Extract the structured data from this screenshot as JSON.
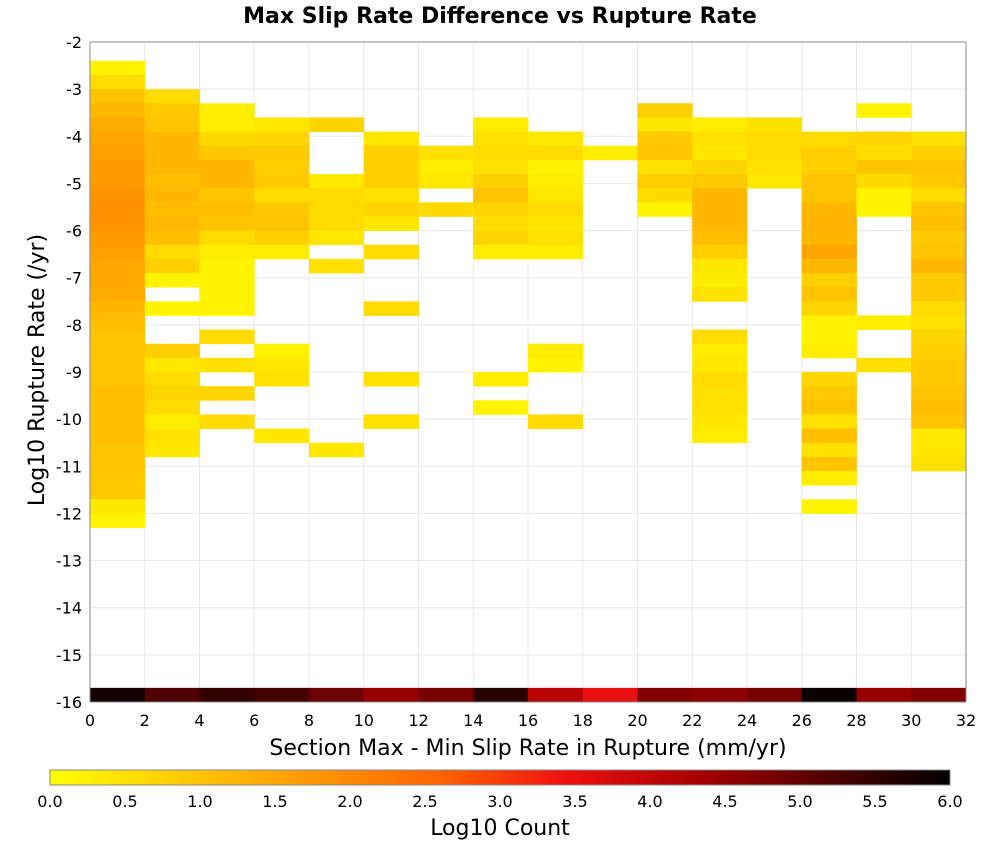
{
  "chart_data": {
    "type": "heatmap",
    "title": "Max Slip Rate Difference vs Rupture Rate",
    "xlabel": "Section Max - Min Slip Rate in Rupture (mm/yr)",
    "ylabel": "Log10 Rupture Rate (/yr)",
    "xlim": [
      0,
      32
    ],
    "ylim": [
      -16,
      -2
    ],
    "x_ticks": [
      "0",
      "2",
      "4",
      "6",
      "8",
      "10",
      "12",
      "14",
      "16",
      "18",
      "20",
      "22",
      "24",
      "26",
      "28",
      "30",
      "32"
    ],
    "y_ticks": [
      "-2",
      "-3",
      "-4",
      "-5",
      "-6",
      "-7",
      "-8",
      "-9",
      "-10",
      "-11",
      "-12",
      "-13",
      "-14",
      "-15",
      "-16"
    ],
    "grid": true,
    "x_bin_width": 2,
    "y_bin_height": 0.3,
    "colorbar": {
      "label": "Log10 Count",
      "range": [
        0,
        6
      ],
      "ticks": [
        "0.0",
        "0.5",
        "1.0",
        "1.5",
        "2.0",
        "2.5",
        "3.0",
        "3.5",
        "4.0",
        "4.5",
        "5.0",
        "5.5",
        "6.0"
      ],
      "stops": [
        "#ffff00",
        "#ffcc00",
        "#ff9900",
        "#ff6600",
        "#ee1111",
        "#aa0000",
        "#550000",
        "#000000"
      ]
    },
    "columns": [
      {
        "x0": 0,
        "cells": [
          [
            -2.7,
            0.2
          ],
          [
            -3.0,
            0.6
          ],
          [
            -3.3,
            1.0
          ],
          [
            -3.6,
            1.2
          ],
          [
            -3.9,
            1.4
          ],
          [
            -4.2,
            1.5
          ],
          [
            -4.5,
            1.6
          ],
          [
            -4.8,
            1.7
          ],
          [
            -5.1,
            1.7
          ],
          [
            -5.4,
            1.8
          ],
          [
            -5.7,
            1.9
          ],
          [
            -6.0,
            1.8
          ],
          [
            -6.3,
            1.7
          ],
          [
            -6.6,
            1.6
          ],
          [
            -6.9,
            1.5
          ],
          [
            -7.2,
            1.5
          ],
          [
            -7.5,
            1.4
          ],
          [
            -7.8,
            1.2
          ],
          [
            -8.1,
            1.1
          ],
          [
            -8.4,
            1.0
          ],
          [
            -8.7,
            1.0
          ],
          [
            -9.0,
            1.0
          ],
          [
            -9.3,
            1.0
          ],
          [
            -9.6,
            1.1
          ],
          [
            -9.9,
            1.1
          ],
          [
            -10.2,
            1.1
          ],
          [
            -10.5,
            1.1
          ],
          [
            -10.8,
            1.0
          ],
          [
            -11.1,
            1.0
          ],
          [
            -11.4,
            0.9
          ],
          [
            -11.7,
            0.9
          ],
          [
            -12.0,
            0.4
          ],
          [
            -12.3,
            0.2
          ]
        ]
      },
      {
        "x0": 2,
        "cells": [
          [
            -3.3,
            0.6
          ],
          [
            -3.6,
            0.9
          ],
          [
            -3.9,
            1.0
          ],
          [
            -4.2,
            1.2
          ],
          [
            -4.5,
            1.2
          ],
          [
            -4.8,
            1.2
          ],
          [
            -5.1,
            1.1
          ],
          [
            -5.4,
            1.2
          ],
          [
            -5.7,
            1.1
          ],
          [
            -6.0,
            1.2
          ],
          [
            -6.3,
            1.1
          ],
          [
            -6.6,
            0.6
          ],
          [
            -6.9,
            0.8
          ],
          [
            -7.2,
            0.2
          ],
          [
            -7.8,
            0.2
          ],
          [
            -8.7,
            0.8
          ],
          [
            -9.0,
            0.4
          ],
          [
            -9.3,
            0.6
          ],
          [
            -9.6,
            0.7
          ],
          [
            -9.9,
            0.6
          ],
          [
            -10.2,
            0.3
          ],
          [
            -10.5,
            0.5
          ],
          [
            -10.8,
            0.4
          ]
        ]
      },
      {
        "x0": 4,
        "cells": [
          [
            -3.6,
            0.3
          ],
          [
            -3.9,
            0.3
          ],
          [
            -4.2,
            0.6
          ],
          [
            -4.5,
            0.9
          ],
          [
            -4.8,
            1.2
          ],
          [
            -5.1,
            1.2
          ],
          [
            -5.4,
            1.0
          ],
          [
            -5.7,
            1.1
          ],
          [
            -6.0,
            1.0
          ],
          [
            -6.3,
            0.6
          ],
          [
            -6.6,
            0.3
          ],
          [
            -6.9,
            0.2
          ],
          [
            -7.2,
            0.2
          ],
          [
            -7.5,
            0.2
          ],
          [
            -7.8,
            0.2
          ],
          [
            -8.4,
            0.6
          ],
          [
            -9.0,
            0.5
          ],
          [
            -9.6,
            0.7
          ],
          [
            -10.2,
            0.6
          ]
        ]
      },
      {
        "x0": 6,
        "cells": [
          [
            -3.9,
            0.4
          ],
          [
            -4.2,
            0.7
          ],
          [
            -4.5,
            0.9
          ],
          [
            -4.8,
            0.8
          ],
          [
            -5.1,
            0.9
          ],
          [
            -5.4,
            0.6
          ],
          [
            -5.7,
            0.9
          ],
          [
            -6.0,
            1.0
          ],
          [
            -6.3,
            0.8
          ],
          [
            -6.6,
            0.3
          ],
          [
            -8.7,
            0.2
          ],
          [
            -9.0,
            0.4
          ],
          [
            -9.3,
            0.5
          ],
          [
            -10.5,
            0.4
          ]
        ]
      },
      {
        "x0": 8,
        "cells": [
          [
            -3.9,
            0.7
          ],
          [
            -5.1,
            0.4
          ],
          [
            -5.4,
            0.6
          ],
          [
            -5.7,
            0.6
          ],
          [
            -6.0,
            0.6
          ],
          [
            -6.3,
            0.4
          ],
          [
            -6.9,
            0.5
          ],
          [
            -10.8,
            0.4
          ]
        ]
      },
      {
        "x0": 10,
        "cells": [
          [
            -4.2,
            0.4
          ],
          [
            -4.5,
            0.8
          ],
          [
            -4.8,
            0.8
          ],
          [
            -5.1,
            0.8
          ],
          [
            -5.4,
            0.5
          ],
          [
            -5.7,
            0.7
          ],
          [
            -6.0,
            0.4
          ],
          [
            -6.6,
            0.6
          ],
          [
            -7.8,
            0.6
          ],
          [
            -9.3,
            0.5
          ],
          [
            -10.2,
            0.5
          ]
        ]
      },
      {
        "x0": 12,
        "cells": [
          [
            -4.5,
            0.5
          ],
          [
            -4.8,
            0.3
          ],
          [
            -5.1,
            0.4
          ],
          [
            -5.7,
            0.6
          ]
        ]
      },
      {
        "x0": 14,
        "cells": [
          [
            -3.9,
            0.3
          ],
          [
            -4.2,
            0.5
          ],
          [
            -4.5,
            0.6
          ],
          [
            -4.8,
            0.5
          ],
          [
            -5.1,
            0.8
          ],
          [
            -5.4,
            1.0
          ],
          [
            -5.7,
            0.7
          ],
          [
            -6.0,
            0.6
          ],
          [
            -6.3,
            0.7
          ],
          [
            -6.6,
            0.3
          ],
          [
            -9.3,
            0.3
          ],
          [
            -9.9,
            0.2
          ]
        ]
      },
      {
        "x0": 16,
        "cells": [
          [
            -4.2,
            0.4
          ],
          [
            -4.5,
            0.6
          ],
          [
            -4.8,
            0.2
          ],
          [
            -5.1,
            0.3
          ],
          [
            -5.4,
            0.4
          ],
          [
            -5.7,
            0.6
          ],
          [
            -6.0,
            0.4
          ],
          [
            -6.3,
            0.5
          ],
          [
            -6.6,
            0.3
          ],
          [
            -8.7,
            0.3
          ],
          [
            -9.0,
            0.2
          ],
          [
            -10.2,
            0.6
          ]
        ]
      },
      {
        "x0": 18,
        "cells": [
          [
            -4.5,
            0.3
          ]
        ]
      },
      {
        "x0": 20,
        "cells": [
          [
            -3.6,
            0.8
          ],
          [
            -3.9,
            0.4
          ],
          [
            -4.2,
            0.9
          ],
          [
            -4.5,
            1.0
          ],
          [
            -4.8,
            0.5
          ],
          [
            -5.1,
            0.8
          ],
          [
            -5.4,
            0.6
          ],
          [
            -5.7,
            0.2
          ]
        ]
      },
      {
        "x0": 22,
        "cells": [
          [
            -3.9,
            0.3
          ],
          [
            -4.2,
            0.5
          ],
          [
            -4.5,
            0.4
          ],
          [
            -4.8,
            0.7
          ],
          [
            -5.1,
            0.9
          ],
          [
            -5.4,
            1.2
          ],
          [
            -5.7,
            1.2
          ],
          [
            -6.0,
            1.2
          ],
          [
            -6.3,
            1.1
          ],
          [
            -6.6,
            0.8
          ],
          [
            -6.9,
            0.4
          ],
          [
            -7.2,
            0.3
          ],
          [
            -7.5,
            0.5
          ],
          [
            -8.4,
            0.6
          ],
          [
            -8.7,
            0.3
          ],
          [
            -9.0,
            0.4
          ],
          [
            -9.3,
            0.6
          ],
          [
            -9.6,
            0.5
          ],
          [
            -9.9,
            0.5
          ],
          [
            -10.2,
            0.4
          ],
          [
            -10.5,
            0.3
          ]
        ]
      },
      {
        "x0": 24,
        "cells": [
          [
            -3.9,
            0.5
          ],
          [
            -4.2,
            0.6
          ],
          [
            -4.5,
            0.6
          ],
          [
            -4.8,
            0.5
          ],
          [
            -5.1,
            0.4
          ]
        ]
      },
      {
        "x0": 26,
        "cells": [
          [
            -4.2,
            0.6
          ],
          [
            -4.5,
            0.8
          ],
          [
            -4.8,
            0.8
          ],
          [
            -5.1,
            1.0
          ],
          [
            -5.4,
            1.0
          ],
          [
            -5.7,
            1.2
          ],
          [
            -6.0,
            1.3
          ],
          [
            -6.3,
            1.2
          ],
          [
            -6.6,
            1.5
          ],
          [
            -6.9,
            1.2
          ],
          [
            -7.2,
            0.8
          ],
          [
            -7.5,
            1.0
          ],
          [
            -7.8,
            0.7
          ],
          [
            -8.1,
            0.2
          ],
          [
            -8.4,
            0.2
          ],
          [
            -8.7,
            0.3
          ],
          [
            -9.3,
            0.7
          ],
          [
            -9.6,
            0.9
          ],
          [
            -9.9,
            1.0
          ],
          [
            -10.2,
            0.5
          ],
          [
            -10.5,
            1.1
          ],
          [
            -10.8,
            0.5
          ],
          [
            -11.1,
            1.0
          ],
          [
            -11.4,
            0.3
          ],
          [
            -12.0,
            0.2
          ]
        ]
      },
      {
        "x0": 28,
        "cells": [
          [
            -3.6,
            0.2
          ],
          [
            -4.2,
            0.7
          ],
          [
            -4.5,
            0.6
          ],
          [
            -4.8,
            1.0
          ],
          [
            -5.1,
            0.6
          ],
          [
            -5.4,
            0.2
          ],
          [
            -5.7,
            0.2
          ],
          [
            -8.1,
            0.3
          ],
          [
            -9.0,
            0.5
          ]
        ]
      },
      {
        "x0": 30,
        "cells": [
          [
            -4.2,
            0.5
          ],
          [
            -4.5,
            0.8
          ],
          [
            -4.8,
            1.0
          ],
          [
            -5.1,
            0.9
          ],
          [
            -5.4,
            0.6
          ],
          [
            -5.7,
            1.0
          ],
          [
            -6.0,
            1.1
          ],
          [
            -6.3,
            0.9
          ],
          [
            -6.6,
            1.0
          ],
          [
            -6.9,
            1.2
          ],
          [
            -7.2,
            0.9
          ],
          [
            -7.5,
            0.9
          ],
          [
            -7.8,
            0.6
          ],
          [
            -8.1,
            0.5
          ],
          [
            -8.4,
            0.7
          ],
          [
            -8.7,
            0.8
          ],
          [
            -9.0,
            0.9
          ],
          [
            -9.3,
            0.9
          ],
          [
            -9.6,
            1.0
          ],
          [
            -9.9,
            1.1
          ],
          [
            -10.2,
            1.0
          ],
          [
            -10.5,
            0.4
          ],
          [
            -10.8,
            0.4
          ],
          [
            -11.1,
            0.5
          ]
        ]
      }
    ],
    "bottom_row": {
      "y0": -16,
      "values": [
        5.8,
        5.2,
        5.5,
        5.3,
        4.9,
        4.5,
        4.8,
        5.6,
        4.1,
        3.5,
        4.7,
        4.6,
        4.8,
        5.9,
        4.5,
        4.7
      ]
    }
  }
}
